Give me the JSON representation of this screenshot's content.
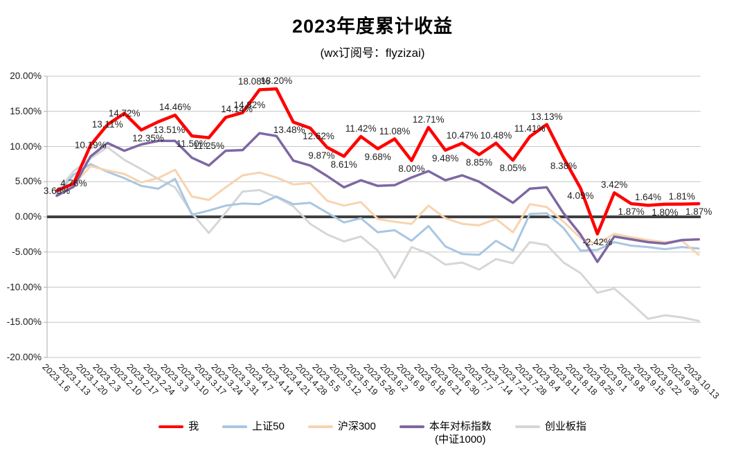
{
  "header": {
    "title": "2023年度累计收益",
    "subtitle": "(wx订阅号：flyzizai)"
  },
  "chart_data": {
    "type": "line",
    "title": "2023年度累计收益",
    "subtitle": "(wx订阅号：flyzizai)",
    "ylim": [
      -20,
      20
    ],
    "grid": true,
    "legend_position": "bottom",
    "y_ticks": [
      "20.00%",
      "15.00%",
      "10.00%",
      "5.00%",
      "0.00%",
      "-5.00%",
      "-10.00%",
      "-15.00%",
      "-20.00%"
    ],
    "y_tick_values": [
      20,
      15,
      10,
      5,
      0,
      -5,
      -10,
      -15,
      -20
    ],
    "categories": [
      "2023.1.6",
      "2023.1.13",
      "2023.1.20",
      "2023.2.3",
      "2023.2.10",
      "2023.2.17",
      "2023.2.24",
      "2023.3.3",
      "2023.3.10",
      "2023.3.17",
      "2023.3.24",
      "2023.3.31",
      "2023.4.7",
      "2023.4.14",
      "2023.4.21",
      "2023.4.28",
      "2023.5.5",
      "2023.5.12",
      "2023.5.19",
      "2023.5.26",
      "2023.6.2",
      "2023.6.9",
      "2023.6.16",
      "2023.6.21",
      "2023.6.30",
      "2023.7.7",
      "2023.7.14",
      "2023.7.21",
      "2023.7.28",
      "2023.8.4",
      "2023.8.11",
      "2023.8.18",
      "2023.8.25",
      "2023.9.1",
      "2023.9.8",
      "2023.9.15",
      "2023.9.22",
      "2023.9.28",
      "2023.10.13"
    ],
    "series": [
      {
        "name": "创业板指",
        "color": "#D6D6D6",
        "width": 3,
        "labeled": false,
        "values": [
          3.5,
          6.5,
          8.3,
          9.9,
          8.1,
          6.8,
          5.4,
          4.2,
          0.5,
          -2.3,
          0.6,
          3.6,
          3.8,
          2.8,
          1.5,
          -1.0,
          -2.5,
          -3.5,
          -2.8,
          -4.8,
          -8.7,
          -4.3,
          -5.2,
          -6.8,
          -6.5,
          -7.5,
          -6.0,
          -6.6,
          -3.6,
          -4.0,
          -6.5,
          -8.0,
          -10.8,
          -10.2,
          -12.3,
          -14.5,
          -14.0,
          -14.3,
          -14.8
        ]
      },
      {
        "name": "上证50",
        "color": "#A8C6E2",
        "width": 3,
        "labeled": false,
        "values": [
          3.2,
          6.0,
          7.5,
          6.4,
          5.5,
          4.4,
          4.0,
          5.4,
          0.3,
          0.9,
          1.6,
          1.9,
          1.8,
          2.9,
          1.8,
          2.0,
          0.6,
          -0.8,
          -0.2,
          -2.2,
          -1.9,
          -3.4,
          -1.3,
          -4.2,
          -5.3,
          -5.4,
          -3.4,
          -4.8,
          0.4,
          0.5,
          -1.6,
          -4.8,
          -4.7,
          -3.6,
          -4.1,
          -4.3,
          -4.6,
          -4.3,
          -4.5
        ]
      },
      {
        "name": "沪深300",
        "color": "#F8D3B0",
        "width": 3,
        "labeled": false,
        "values": [
          3.6,
          4.6,
          7.2,
          6.6,
          6.1,
          4.9,
          5.5,
          6.7,
          2.9,
          2.4,
          4.2,
          5.9,
          6.3,
          5.6,
          4.6,
          4.8,
          2.3,
          1.6,
          2.1,
          -0.3,
          -0.7,
          -1.0,
          1.6,
          -0.2,
          -1.0,
          -1.2,
          -0.3,
          -2.2,
          1.8,
          1.4,
          -0.7,
          -3.0,
          -3.9,
          -2.4,
          -2.9,
          -3.3,
          -3.6,
          -3.4,
          -5.4
        ]
      },
      {
        "name": "本年对标指数",
        "name_line2": "(中证1000)",
        "color": "#7D67A3",
        "width": 3.5,
        "labeled": false,
        "values": [
          3.0,
          4.3,
          8.6,
          10.5,
          9.4,
          10.3,
          10.8,
          10.8,
          8.4,
          7.3,
          9.4,
          9.5,
          11.9,
          11.5,
          8.0,
          7.3,
          5.8,
          4.2,
          5.2,
          4.4,
          4.5,
          5.6,
          6.5,
          5.2,
          5.9,
          5.0,
          3.5,
          2.0,
          4.0,
          4.2,
          0.5,
          -2.5,
          -6.4,
          -2.8,
          -3.2,
          -3.6,
          -3.8,
          -3.3,
          -3.2
        ]
      },
      {
        "name": "我",
        "color": "#FF0000",
        "width": 4.5,
        "labeled": true,
        "values": [
          3.69,
          4.76,
          10.19,
          13.11,
          14.72,
          12.35,
          13.51,
          14.46,
          11.5,
          11.25,
          14.14,
          14.82,
          18.08,
          18.2,
          13.48,
          12.62,
          9.87,
          8.61,
          11.42,
          9.68,
          11.08,
          8.0,
          12.71,
          9.48,
          10.47,
          8.85,
          10.48,
          8.05,
          11.41,
          13.13,
          8.38,
          4.09,
          -2.42,
          3.42,
          1.87,
          1.64,
          1.8,
          1.81,
          1.87
        ],
        "label_pos": [
          "on",
          "on",
          "on",
          "on",
          "on",
          "below",
          "below",
          "above",
          "below",
          "below",
          "above",
          "above",
          "above",
          "above",
          "below",
          "below",
          "below",
          "below",
          "above",
          "below",
          "above",
          "below",
          "above",
          "below",
          "above",
          "below",
          "above",
          "below",
          "above",
          "above",
          "below",
          "below",
          "below",
          "above",
          "below",
          "above",
          "below",
          "above",
          "below"
        ],
        "label_dx": {
          "5": 10,
          "6": 16,
          "10": 16,
          "11": 10,
          "12": -8,
          "14": -6,
          "15": 12,
          "16": -8
        }
      }
    ],
    "zero_line_color": "#404040",
    "gridline_color": "#C6C6C6",
    "axis_line_color": "#ABABAB"
  },
  "legend": {
    "items": [
      {
        "label": "我",
        "color": "#FF0000"
      },
      {
        "label": "上证50",
        "color": "#A8C6E2"
      },
      {
        "label": "沪深300",
        "color": "#F8D3B0"
      },
      {
        "label": "本年对标指数",
        "label_line2": "(中证1000)",
        "color": "#7D67A3"
      },
      {
        "label": "创业板指",
        "color": "#D6D6D6"
      }
    ]
  }
}
